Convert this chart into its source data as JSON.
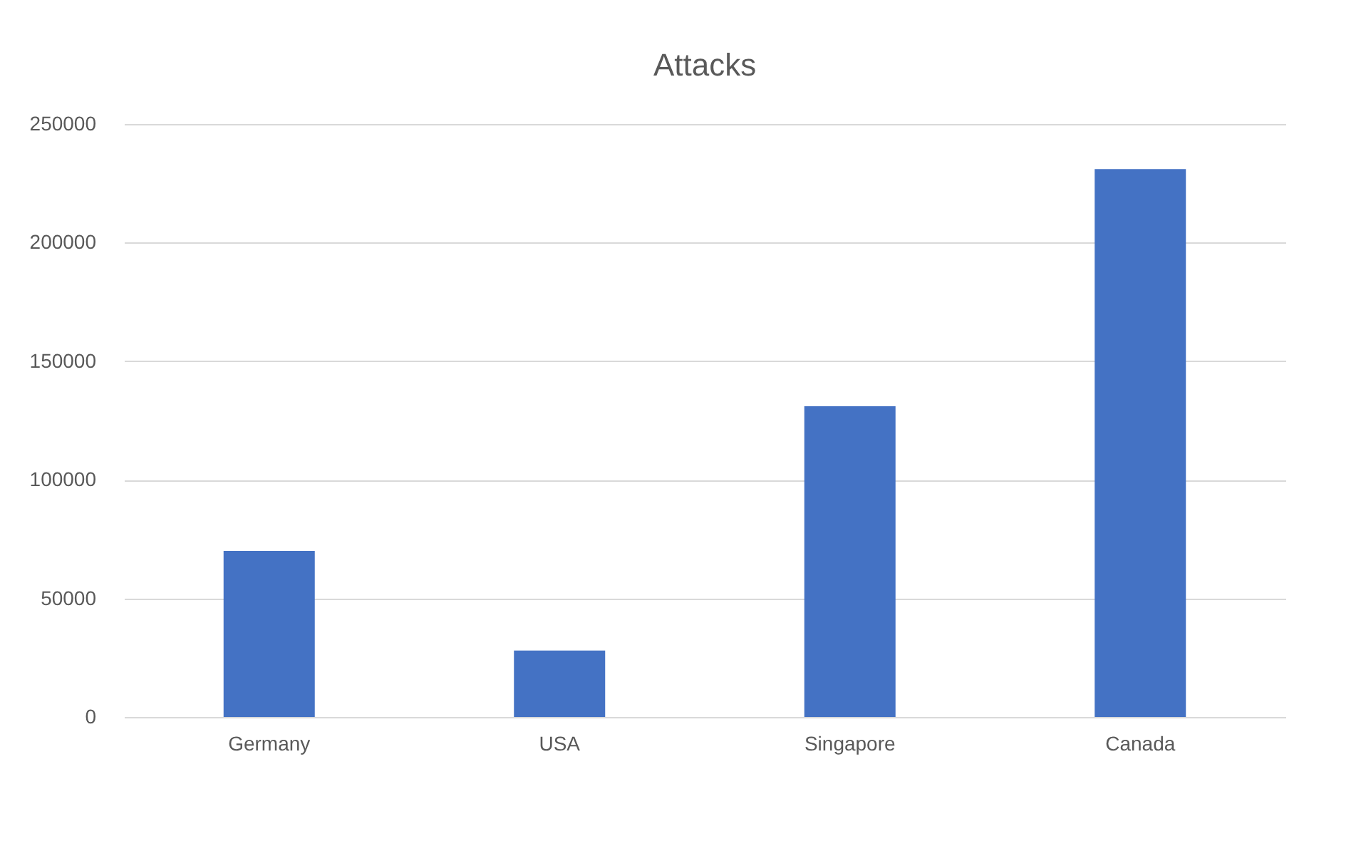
{
  "chart_data": {
    "type": "bar",
    "title": "Attacks",
    "categories": [
      "Germany",
      "USA",
      "Singapore",
      "Canada"
    ],
    "values": [
      70000,
      28000,
      131000,
      231000
    ],
    "color": "#4472c4",
    "ylim": [
      0,
      250000
    ],
    "yticks": [
      0,
      50000,
      100000,
      150000,
      200000,
      250000
    ],
    "grid": "y"
  }
}
